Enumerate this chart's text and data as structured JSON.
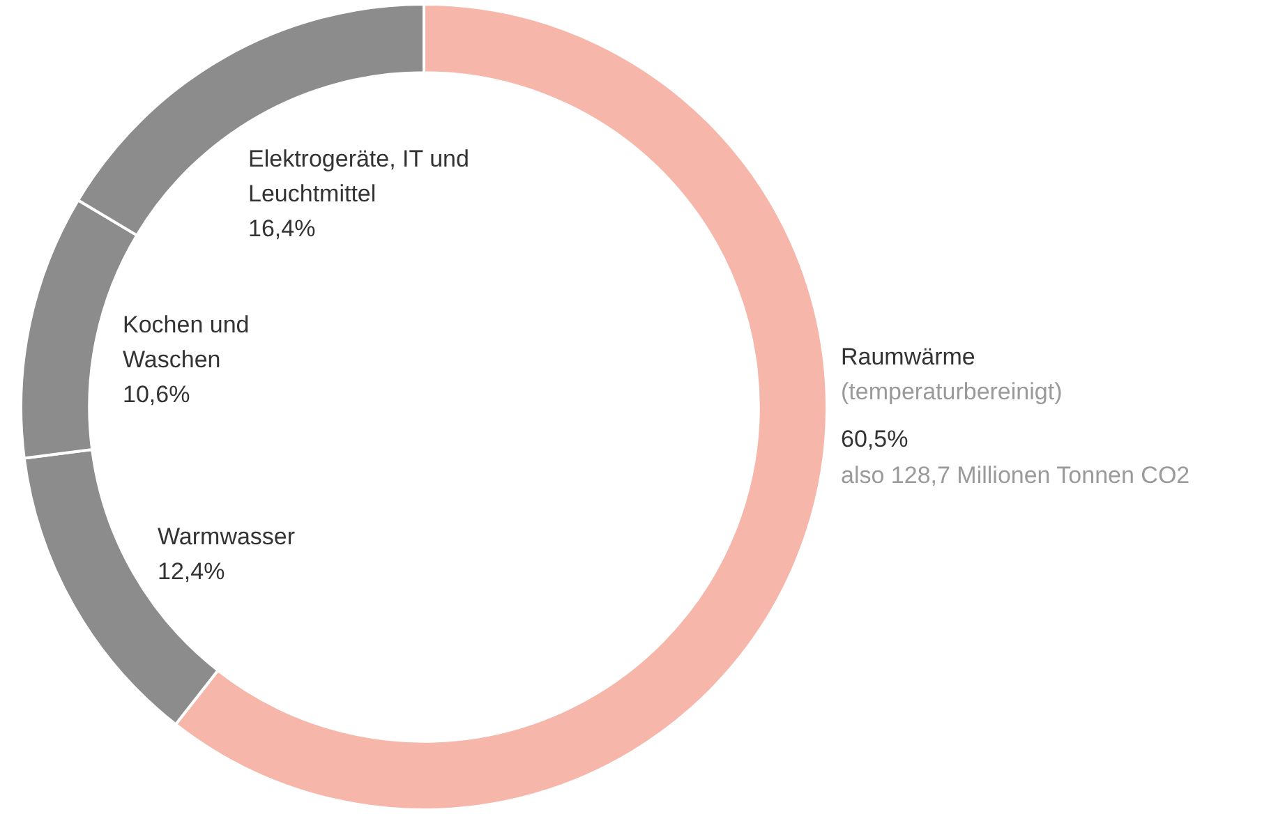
{
  "chart_data": {
    "type": "donut",
    "categories": [
      "Raumwärme",
      "Warmwasser",
      "Kochen und Waschen",
      "Elektrogeräte, IT und Leuchtmittel"
    ],
    "values": [
      60.5,
      12.4,
      10.6,
      16.4
    ],
    "colors": [
      "#f6b6aa",
      "#8c8c8c",
      "#8c8c8c",
      "#8c8c8c"
    ],
    "value_labels": [
      "60,5%",
      "12,4%",
      "10,6%",
      "16,4%"
    ],
    "annotations": [
      "(temperaturbereinigt)",
      "also 128,7 Millionen Tonnen CO2"
    ],
    "legend": false
  }
}
